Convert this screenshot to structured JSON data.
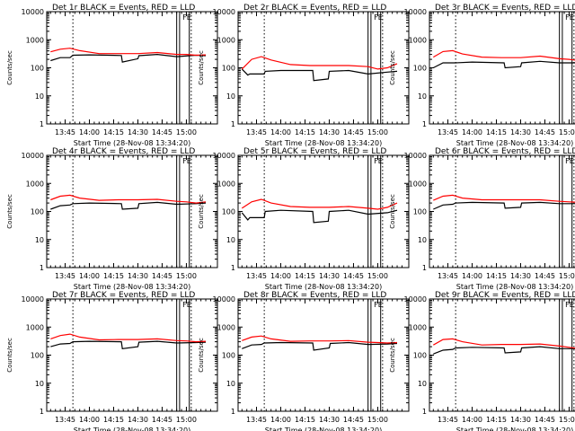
{
  "figure": {
    "background": "#ffffff",
    "axis_color": "#000000",
    "events_color": "#000000",
    "lld_color": "#ff0000"
  },
  "chart_data": [
    {
      "type": "line",
      "title": "Det 1r BLACK = Events, RED = LLD",
      "xlabel": "Start Time (28-Nov-08 13:34:20)",
      "ylabel": "Counts/sec",
      "xticks": [
        "13:45",
        "14:00",
        "14:15",
        "14:30",
        "14:45",
        "15:00"
      ],
      "yticks": [
        "1",
        "10",
        "100",
        "1000",
        "10000"
      ],
      "yscale": "log",
      "ylim": [
        1,
        10000
      ],
      "annotations": [
        "FE"
      ],
      "series": [
        {
          "name": "Events",
          "color": "#000000",
          "x": [
            13.6,
            13.7,
            13.8,
            13.83,
            14.0,
            14.33,
            14.34,
            14.5,
            14.51,
            14.7,
            14.9,
            15.1,
            15.2
          ],
          "y": [
            180,
            230,
            230,
            280,
            290,
            275,
            160,
            210,
            270,
            300,
            250,
            280,
            270
          ]
        },
        {
          "name": "LLD",
          "color": "#ff0000",
          "x": [
            13.6,
            13.7,
            13.8,
            13.9,
            14.1,
            14.3,
            14.5,
            14.7,
            14.9,
            15.0,
            15.1,
            15.2
          ],
          "y": [
            370,
            460,
            500,
            410,
            320,
            320,
            320,
            350,
            300,
            300,
            280,
            290
          ]
        }
      ]
    },
    {
      "type": "line",
      "title": "Det 2r BLACK = Events, RED = LLD",
      "xlabel": "Start Time (28-Nov-08 13:34:20)",
      "ylabel": "Counts/sec",
      "xticks": [
        "13:45",
        "14:00",
        "14:15",
        "14:30",
        "14:45",
        "15:00"
      ],
      "yticks": [
        "1",
        "10",
        "100",
        "1000",
        "10000"
      ],
      "yscale": "log",
      "ylim": [
        1,
        10000
      ],
      "annotations": [
        "FE"
      ],
      "series": [
        {
          "name": "Events",
          "color": "#000000",
          "x": [
            13.6,
            13.66,
            13.68,
            13.83,
            13.84,
            14.0,
            14.33,
            14.34,
            14.49,
            14.5,
            14.7,
            14.9,
            15.1,
            15.2
          ],
          "y": [
            90,
            55,
            60,
            60,
            75,
            80,
            80,
            35,
            40,
            75,
            80,
            60,
            70,
            75
          ]
        },
        {
          "name": "LLD",
          "color": "#ff0000",
          "x": [
            13.6,
            13.7,
            13.8,
            13.9,
            14.1,
            14.3,
            14.5,
            14.7,
            14.9,
            15.0,
            15.1,
            15.2
          ],
          "y": [
            90,
            200,
            250,
            190,
            130,
            120,
            120,
            120,
            110,
            90,
            100,
            140
          ]
        }
      ]
    },
    {
      "type": "line",
      "title": "Det 3r BLACK = Events, RED = LLD",
      "xlabel": "Start Time (28-Nov-08 13:34:20)",
      "ylabel": "Counts/sec",
      "xticks": [
        "13:45",
        "14:00",
        "14:15",
        "14:30",
        "14:45",
        "15:00"
      ],
      "yticks": [
        "1",
        "10",
        "100",
        "1000",
        "10000"
      ],
      "yscale": "log",
      "ylim": [
        1,
        10000
      ],
      "annotations": [
        "FE"
      ],
      "series": [
        {
          "name": "Events",
          "color": "#000000",
          "x": [
            13.6,
            13.7,
            13.8,
            13.83,
            14.0,
            14.33,
            14.34,
            14.5,
            14.51,
            14.7,
            14.9,
            15.1,
            15.2
          ],
          "y": [
            100,
            150,
            150,
            150,
            160,
            150,
            100,
            110,
            150,
            170,
            150,
            150,
            160
          ]
        },
        {
          "name": "LLD",
          "color": "#ff0000",
          "x": [
            13.6,
            13.7,
            13.8,
            13.9,
            14.1,
            14.3,
            14.5,
            14.7,
            14.9,
            15.0,
            15.1,
            15.2
          ],
          "y": [
            240,
            380,
            410,
            310,
            240,
            230,
            230,
            260,
            210,
            200,
            180,
            200
          ]
        }
      ]
    },
    {
      "type": "line",
      "title": "Det 4r BLACK = Events, RED = LLD",
      "xlabel": "Start Time (28-Nov-08 13:34:20)",
      "ylabel": "Counts/sec",
      "xticks": [
        "13:45",
        "14:00",
        "14:15",
        "14:30",
        "14:45",
        "15:00"
      ],
      "yticks": [
        "1",
        "10",
        "100",
        "1000",
        "10000"
      ],
      "yscale": "log",
      "ylim": [
        1,
        10000
      ],
      "annotations": [
        "FE"
      ],
      "series": [
        {
          "name": "Events",
          "color": "#000000",
          "x": [
            13.6,
            13.7,
            13.8,
            13.83,
            14.0,
            14.33,
            14.34,
            14.5,
            14.51,
            14.7,
            14.9,
            15.1,
            15.2
          ],
          "y": [
            120,
            160,
            170,
            190,
            200,
            190,
            120,
            130,
            190,
            210,
            180,
            190,
            200
          ]
        },
        {
          "name": "LLD",
          "color": "#ff0000",
          "x": [
            13.6,
            13.7,
            13.8,
            13.9,
            14.1,
            14.3,
            14.5,
            14.7,
            14.9,
            15.0,
            15.1,
            15.2
          ],
          "y": [
            260,
            350,
            380,
            300,
            250,
            260,
            260,
            270,
            230,
            220,
            200,
            220
          ]
        }
      ]
    },
    {
      "type": "line",
      "title": "Det 5r BLACK = Events, RED = LLD",
      "xlabel": "Start Time (28-Nov-08 13:34:20)",
      "ylabel": "Counts/sec",
      "xticks": [
        "13:45",
        "14:00",
        "14:15",
        "14:30",
        "14:45",
        "15:00"
      ],
      "yticks": [
        "1",
        "10",
        "100",
        "1000",
        "10000"
      ],
      "yscale": "log",
      "ylim": [
        1,
        10000
      ],
      "annotations": [
        "FE"
      ],
      "series": [
        {
          "name": "Events",
          "color": "#000000",
          "x": [
            13.6,
            13.66,
            13.68,
            13.83,
            13.84,
            14.0,
            14.33,
            14.34,
            14.49,
            14.5,
            14.7,
            14.9,
            15.1,
            15.2
          ],
          "y": [
            90,
            50,
            60,
            60,
            100,
            110,
            100,
            40,
            45,
            100,
            110,
            80,
            90,
            110
          ]
        },
        {
          "name": "LLD",
          "color": "#ff0000",
          "x": [
            13.6,
            13.7,
            13.8,
            13.9,
            14.1,
            14.3,
            14.5,
            14.7,
            14.9,
            15.0,
            15.1,
            15.2
          ],
          "y": [
            130,
            220,
            270,
            200,
            150,
            140,
            140,
            150,
            130,
            120,
            140,
            200
          ]
        }
      ]
    },
    {
      "type": "line",
      "title": "Det 6r BLACK = Events, RED = LLD",
      "xlabel": "Start Time (28-Nov-08 13:34:20)",
      "ylabel": "Counts/sec",
      "xticks": [
        "13:45",
        "14:00",
        "14:15",
        "14:30",
        "14:45",
        "15:00"
      ],
      "yticks": [
        "1",
        "10",
        "100",
        "1000",
        "10000"
      ],
      "yscale": "log",
      "ylim": [
        1,
        10000
      ],
      "annotations": [
        "FE"
      ],
      "series": [
        {
          "name": "Events",
          "color": "#000000",
          "x": [
            13.6,
            13.7,
            13.8,
            13.83,
            14.0,
            14.33,
            14.34,
            14.5,
            14.51,
            14.7,
            14.9,
            15.1,
            15.2
          ],
          "y": [
            120,
            170,
            180,
            200,
            210,
            200,
            130,
            140,
            200,
            210,
            190,
            190,
            190
          ]
        },
        {
          "name": "LLD",
          "color": "#ff0000",
          "x": [
            13.6,
            13.7,
            13.8,
            13.9,
            14.1,
            14.3,
            14.5,
            14.7,
            14.9,
            15.0,
            15.1,
            15.2
          ],
          "y": [
            250,
            350,
            380,
            300,
            260,
            260,
            260,
            260,
            230,
            220,
            210,
            210
          ]
        }
      ]
    },
    {
      "type": "line",
      "title": "Det 7r BLACK = Events, RED = LLD",
      "xlabel": "Start Time (28-Nov-08 13:34:20)",
      "ylabel": "Counts/sec",
      "xticks": [
        "13:45",
        "14:00",
        "14:15",
        "14:30",
        "14:45",
        "15:00"
      ],
      "yticks": [
        "1",
        "10",
        "100",
        "1000",
        "10000"
      ],
      "yscale": "log",
      "ylim": [
        1,
        10000
      ],
      "annotations": [
        "FE"
      ],
      "series": [
        {
          "name": "Events",
          "color": "#000000",
          "x": [
            13.6,
            13.7,
            13.8,
            13.83,
            14.0,
            14.33,
            14.34,
            14.5,
            14.51,
            14.7,
            14.9,
            15.1,
            15.2
          ],
          "y": [
            200,
            250,
            260,
            300,
            310,
            300,
            170,
            200,
            290,
            310,
            270,
            280,
            290
          ]
        },
        {
          "name": "LLD",
          "color": "#ff0000",
          "x": [
            13.6,
            13.7,
            13.8,
            13.9,
            14.1,
            14.3,
            14.5,
            14.7,
            14.9,
            15.0,
            15.1,
            15.2
          ],
          "y": [
            380,
            500,
            560,
            440,
            350,
            360,
            360,
            380,
            330,
            320,
            300,
            310
          ]
        }
      ]
    },
    {
      "type": "line",
      "title": "Det 8r BLACK = Events, RED = LLD",
      "xlabel": "Start Time (28-Nov-08 13:34:20)",
      "ylabel": "Counts/sec",
      "xticks": [
        "13:45",
        "14:00",
        "14:15",
        "14:30",
        "14:45",
        "15:00"
      ],
      "yticks": [
        "1",
        "10",
        "100",
        "1000",
        "10000"
      ],
      "yscale": "log",
      "ylim": [
        1,
        10000
      ],
      "annotations": [
        "FE"
      ],
      "series": [
        {
          "name": "Events",
          "color": "#000000",
          "x": [
            13.6,
            13.7,
            13.8,
            13.83,
            14.0,
            14.33,
            14.34,
            14.5,
            14.51,
            14.7,
            14.9,
            15.1,
            15.2
          ],
          "y": [
            170,
            230,
            240,
            270,
            280,
            270,
            150,
            180,
            260,
            280,
            240,
            250,
            260
          ]
        },
        {
          "name": "LLD",
          "color": "#ff0000",
          "x": [
            13.6,
            13.7,
            13.8,
            13.9,
            14.1,
            14.3,
            14.5,
            14.7,
            14.9,
            15.0,
            15.1,
            15.2
          ],
          "y": [
            330,
            440,
            480,
            380,
            310,
            320,
            320,
            330,
            290,
            280,
            270,
            280
          ]
        }
      ]
    },
    {
      "type": "line",
      "title": "Det 9r BLACK = Events, RED = LLD",
      "xlabel": "Start Time (28-Nov-08 13:34:20)",
      "ylabel": "Counts/sec",
      "xticks": [
        "13:45",
        "14:00",
        "14:15",
        "14:30",
        "14:45",
        "15:00"
      ],
      "yticks": [
        "1",
        "10",
        "100",
        "1000",
        "10000"
      ],
      "yscale": "log",
      "ylim": [
        1,
        10000
      ],
      "annotations": [
        "FE"
      ],
      "series": [
        {
          "name": "Events",
          "color": "#000000",
          "x": [
            13.6,
            13.7,
            13.8,
            13.83,
            14.0,
            14.33,
            14.34,
            14.5,
            14.51,
            14.7,
            14.9,
            15.1,
            15.2
          ],
          "y": [
            110,
            150,
            160,
            180,
            190,
            180,
            120,
            130,
            180,
            200,
            170,
            170,
            180
          ]
        },
        {
          "name": "LLD",
          "color": "#ff0000",
          "x": [
            13.6,
            13.7,
            13.8,
            13.9,
            14.1,
            14.3,
            14.5,
            14.7,
            14.9,
            15.0,
            15.1,
            15.2
          ],
          "y": [
            230,
            360,
            380,
            300,
            230,
            240,
            240,
            250,
            210,
            190,
            170,
            180
          ]
        }
      ]
    }
  ]
}
